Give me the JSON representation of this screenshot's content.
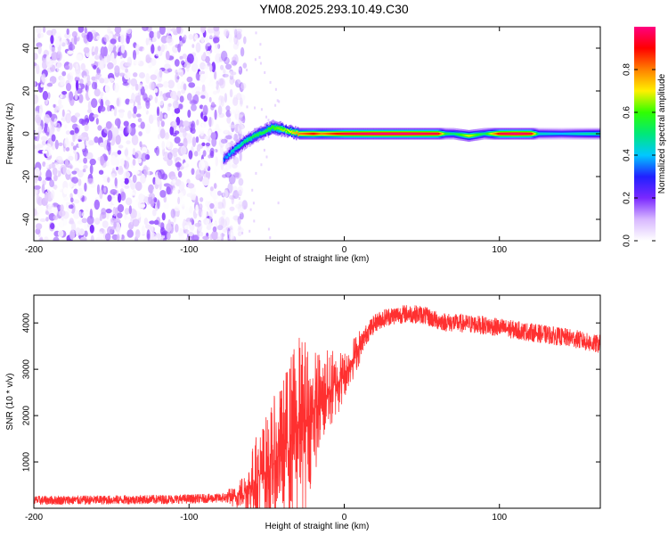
{
  "title": "YM08.2025.293.10.49.C30",
  "chart_data": [
    {
      "type": "heatmap",
      "name": "spectrogram",
      "xlabel": "Height of straight line (km)",
      "ylabel": "Frequency (Hz)",
      "xlim": [
        -200,
        165
      ],
      "ylim": [
        -50,
        50
      ],
      "xticks": [
        -200,
        -100,
        0,
        100
      ],
      "yticks": [
        -40,
        -20,
        0,
        20,
        40
      ],
      "colorbar": {
        "label": "Normalized spectral amplitude",
        "range": [
          0,
          1
        ],
        "ticks": [
          "0.0",
          "0.2",
          "0.4",
          "0.6",
          "0.8"
        ],
        "colors": [
          "#ffffff",
          "#d8b8ff",
          "#7a28ff",
          "#2020ff",
          "#00c8ff",
          "#00e878",
          "#30ff00",
          "#fff000",
          "#ff8000",
          "#ff0000",
          "#ff0080"
        ]
      },
      "noise_region": {
        "x": [
          -200,
          -72
        ],
        "level_range": [
          0.0,
          0.2
        ]
      },
      "track": {
        "x": [
          -78,
          -72,
          -65,
          -58,
          -52,
          -46,
          -40,
          -35,
          -30,
          -25,
          -20,
          -15,
          -10,
          -5,
          0,
          20,
          40,
          60,
          65,
          70,
          80,
          90,
          100,
          110,
          120,
          125,
          140,
          150,
          165
        ],
        "freq": [
          -12,
          -8,
          -4,
          -1,
          1,
          3,
          2,
          1,
          0,
          0,
          0,
          0,
          0,
          0,
          0,
          0,
          0,
          0,
          0,
          0,
          -1,
          0,
          0,
          0,
          0,
          0,
          0,
          0,
          0
        ],
        "amp": [
          0.35,
          0.45,
          0.5,
          0.55,
          0.55,
          0.6,
          0.65,
          0.7,
          0.8,
          0.85,
          0.9,
          0.8,
          0.85,
          0.9,
          0.95,
          1.0,
          1.0,
          0.95,
          0.55,
          0.5,
          0.7,
          0.5,
          0.95,
          1.0,
          0.95,
          0.45,
          0.4,
          0.45,
          0.5
        ]
      }
    },
    {
      "type": "line",
      "name": "snr",
      "xlabel": "Height of straight line (km)",
      "ylabel": "SNR (10 * v/v)",
      "xlim": [
        -200,
        165
      ],
      "ylim": [
        0,
        4600
      ],
      "xticks": [
        -200,
        -100,
        0,
        100
      ],
      "yticks": [
        1000,
        2000,
        3000,
        4000
      ],
      "color": "#ff3030",
      "series": [
        {
          "name": "snr",
          "x": [
            -200,
            -150,
            -100,
            -80,
            -70,
            -65,
            -60,
            -55,
            -50,
            -45,
            -40,
            -35,
            -30,
            -25,
            -20,
            -15,
            -10,
            -5,
            0,
            5,
            10,
            15,
            20,
            25,
            30,
            40,
            50,
            60,
            70,
            80,
            90,
            100,
            110,
            120,
            130,
            140,
            150,
            160,
            165
          ],
          "mean": [
            170,
            180,
            200,
            220,
            250,
            350,
            500,
            700,
            800,
            1000,
            1200,
            1500,
            1700,
            1900,
            2100,
            2300,
            2500,
            2700,
            2900,
            3200,
            3500,
            3800,
            4000,
            4100,
            4150,
            4200,
            4180,
            4050,
            4000,
            3980,
            3950,
            3900,
            3850,
            3800,
            3750,
            3700,
            3650,
            3550,
            3550
          ],
          "spread": [
            100,
            100,
            100,
            100,
            150,
            300,
            500,
            700,
            800,
            900,
            1000,
            1200,
            1300,
            1200,
            900,
            700,
            600,
            500,
            350,
            300,
            250,
            220,
            200,
            200,
            200,
            200,
            200,
            200,
            200,
            200,
            200,
            200,
            200,
            200,
            200,
            200,
            200,
            200,
            200
          ]
        }
      ]
    }
  ]
}
